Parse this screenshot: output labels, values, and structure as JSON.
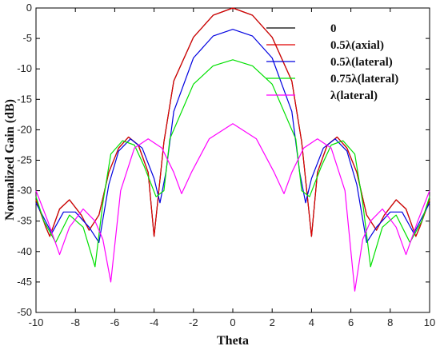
{
  "chart_data": {
    "type": "line",
    "xlabel": "Theta",
    "ylabel": "Normalized Gain (dB)",
    "xlim": [
      -10,
      10
    ],
    "ylim": [
      -50,
      0
    ],
    "xticks": [
      "-10",
      "-8",
      "-6",
      "-4",
      "-2",
      "0",
      "2",
      "4",
      "6",
      "8",
      "10"
    ],
    "yticks": [
      "0",
      "-5",
      "-10",
      "-15",
      "-20",
      "-25",
      "-30",
      "-35",
      "-40",
      "-45",
      "-50"
    ],
    "legend_position": "top-right",
    "grid": false,
    "series": [
      {
        "name": "0",
        "color": "#000000",
        "x": [
          -10,
          -9.5,
          -9.3,
          -8.8,
          -8.3,
          -7.7,
          -7.3,
          -6.8,
          -6.3,
          -5.8,
          -5.3,
          -4.8,
          -4.3,
          -4.0,
          -3.5,
          -3.0,
          -2.0,
          -1.0,
          0,
          1.0,
          2.0,
          3.0,
          3.5,
          4.0,
          4.3,
          4.8,
          5.3,
          5.8,
          6.3,
          6.8,
          7.3,
          7.7,
          8.3,
          8.8,
          9.3,
          9.5,
          10
        ],
        "y": [
          -31.5,
          -36,
          -37.5,
          -33,
          -31.5,
          -34,
          -36.5,
          -34,
          -27,
          -23,
          -21.2,
          -22.5,
          -27,
          -37.5,
          -22,
          -12,
          -4.8,
          -1.2,
          0,
          -1.2,
          -4.8,
          -12,
          -22,
          -37.5,
          -27,
          -22.5,
          -21.2,
          -23,
          -27,
          -34,
          -36.5,
          -34,
          -31.5,
          -33,
          -37.5,
          -36,
          -31.5
        ]
      },
      {
        "name": "0.5λ(axial)",
        "color": "#e00000",
        "x": [
          -10,
          -9.5,
          -9.3,
          -8.8,
          -8.3,
          -7.7,
          -7.3,
          -6.8,
          -6.3,
          -5.8,
          -5.3,
          -4.8,
          -4.3,
          -4.0,
          -3.5,
          -3.0,
          -2.0,
          -1.0,
          0,
          1.0,
          2.0,
          3.0,
          3.5,
          4.0,
          4.3,
          4.8,
          5.3,
          5.8,
          6.3,
          6.8,
          7.3,
          7.7,
          8.3,
          8.8,
          9.3,
          9.5,
          10
        ],
        "y": [
          -31.5,
          -36,
          -37.5,
          -33,
          -31.5,
          -34,
          -36.5,
          -34,
          -27,
          -23,
          -21.2,
          -22.5,
          -27,
          -37.5,
          -22,
          -12,
          -4.8,
          -1.2,
          0,
          -1.2,
          -4.8,
          -12,
          -22,
          -37.5,
          -27,
          -22.5,
          -21.2,
          -23,
          -27,
          -34,
          -36.5,
          -34,
          -31.5,
          -33,
          -37.5,
          -36,
          -31.5
        ]
      },
      {
        "name": "0.5λ(lateral)",
        "color": "#0000e0",
        "x": [
          -10,
          -9.2,
          -8.6,
          -8.0,
          -7.3,
          -6.8,
          -6.3,
          -5.8,
          -5.2,
          -4.6,
          -4.0,
          -3.7,
          -3.4,
          -3.0,
          -2.0,
          -1.0,
          0,
          1.0,
          2.0,
          3.0,
          3.4,
          3.7,
          4.0,
          4.6,
          5.2,
          5.8,
          6.3,
          6.8,
          7.3,
          8.0,
          8.6,
          9.2,
          10
        ],
        "y": [
          -32,
          -37,
          -33.5,
          -33.5,
          -36,
          -38.5,
          -29,
          -23.5,
          -21.5,
          -23,
          -28,
          -32,
          -27,
          -17,
          -8.2,
          -4.6,
          -3.5,
          -4.6,
          -8.2,
          -17,
          -27,
          -32,
          -28,
          -23,
          -21.5,
          -23.5,
          -29,
          -38.5,
          -36,
          -33.5,
          -33.5,
          -37,
          -32
        ]
      },
      {
        "name": "0.75λ(lateral)",
        "color": "#00e000",
        "x": [
          -10,
          -9.6,
          -9.0,
          -8.3,
          -7.6,
          -7.0,
          -6.6,
          -6.2,
          -5.6,
          -5.0,
          -4.5,
          -3.9,
          -3.5,
          -3.2,
          -2.0,
          -1.0,
          0,
          1.0,
          2.0,
          3.2,
          3.5,
          3.9,
          4.5,
          5.0,
          5.6,
          6.2,
          6.6,
          7.0,
          7.6,
          8.3,
          9.0,
          9.6,
          10
        ],
        "y": [
          -31,
          -35,
          -38.5,
          -34,
          -36,
          -42.5,
          -32,
          -24,
          -21.8,
          -22.5,
          -26,
          -31,
          -30,
          -21.5,
          -12.5,
          -9.5,
          -8.5,
          -9.5,
          -12.5,
          -21.5,
          -30,
          -31,
          -26,
          -22.5,
          -21.8,
          -24,
          -32,
          -42.5,
          -36,
          -34,
          -38.5,
          -35,
          -31
        ]
      },
      {
        "name": "λ(lateral)",
        "color": "#ff00ff",
        "x": [
          -10,
          -9.4,
          -8.8,
          -8.3,
          -7.6,
          -7.0,
          -6.6,
          -6.2,
          -5.7,
          -5.0,
          -4.3,
          -3.6,
          -3.0,
          -2.6,
          -2.1,
          -1.2,
          0,
          1.2,
          2.1,
          2.6,
          3.0,
          3.6,
          4.3,
          5.0,
          5.7,
          6.2,
          6.6,
          7.0,
          7.6,
          8.3,
          8.8,
          9.4,
          10
        ],
        "y": [
          -30,
          -35,
          -40.5,
          -36,
          -33,
          -35,
          -38,
          -45,
          -30,
          -23,
          -21.5,
          -23,
          -27,
          -30.5,
          -27,
          -21.5,
          -19,
          -21.5,
          -27,
          -30.5,
          -27,
          -23,
          -21.5,
          -23,
          -30,
          -46.5,
          -38,
          -35,
          -33,
          -36,
          -40.5,
          -35,
          -30
        ]
      }
    ]
  }
}
